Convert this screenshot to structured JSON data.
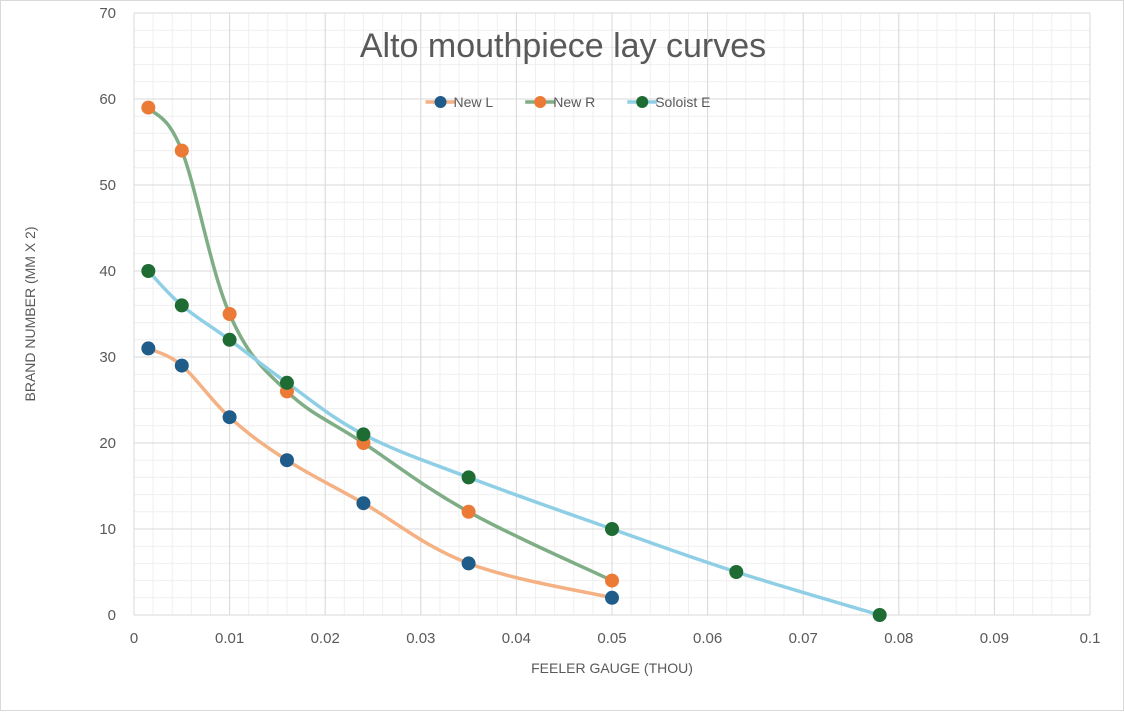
{
  "chart_data": {
    "type": "line",
    "title": "Alto mouthpiece lay curves",
    "xlabel": "FEELER GAUGE (THOU)",
    "ylabel": "BRAND NUMBER (MM X 2)",
    "xlim": [
      0,
      0.1
    ],
    "ylim": [
      0,
      70
    ],
    "x_ticks": [
      0,
      0.01,
      0.02,
      0.03,
      0.04,
      0.05,
      0.06,
      0.07,
      0.08,
      0.09,
      0.1
    ],
    "x_tick_labels": [
      "0",
      "0.01",
      "0.02",
      "0.03",
      "0.04",
      "0.05",
      "0.06",
      "0.07",
      "0.08",
      "0.09",
      "0.1"
    ],
    "y_ticks": [
      0,
      10,
      20,
      30,
      40,
      50,
      60,
      70
    ],
    "y_tick_labels": [
      "0",
      "10",
      "20",
      "30",
      "40",
      "50",
      "60",
      "70"
    ],
    "grid": true,
    "minor_grid": true,
    "legend_position": "top",
    "series": [
      {
        "name": "New L",
        "line_color": "#F4B183",
        "marker_color": "#1F5C89",
        "x": [
          0.0015,
          0.005,
          0.01,
          0.016,
          0.024,
          0.035,
          0.05
        ],
        "y": [
          31,
          29,
          23,
          18,
          13,
          6,
          2
        ]
      },
      {
        "name": "New R",
        "line_color": "#7FAE86",
        "marker_color": "#EB7A37",
        "x": [
          0.0015,
          0.005,
          0.01,
          0.016,
          0.024,
          0.035,
          0.05
        ],
        "y": [
          59,
          54,
          35,
          26,
          20,
          12,
          4
        ]
      },
      {
        "name": "Soloist E",
        "line_color": "#8FCFE6",
        "marker_color": "#1E6B34",
        "x": [
          0.0015,
          0.005,
          0.01,
          0.016,
          0.024,
          0.035,
          0.05,
          0.063,
          0.078
        ],
        "y": [
          40,
          36,
          32,
          27,
          21,
          16,
          10,
          5,
          0
        ]
      }
    ]
  }
}
